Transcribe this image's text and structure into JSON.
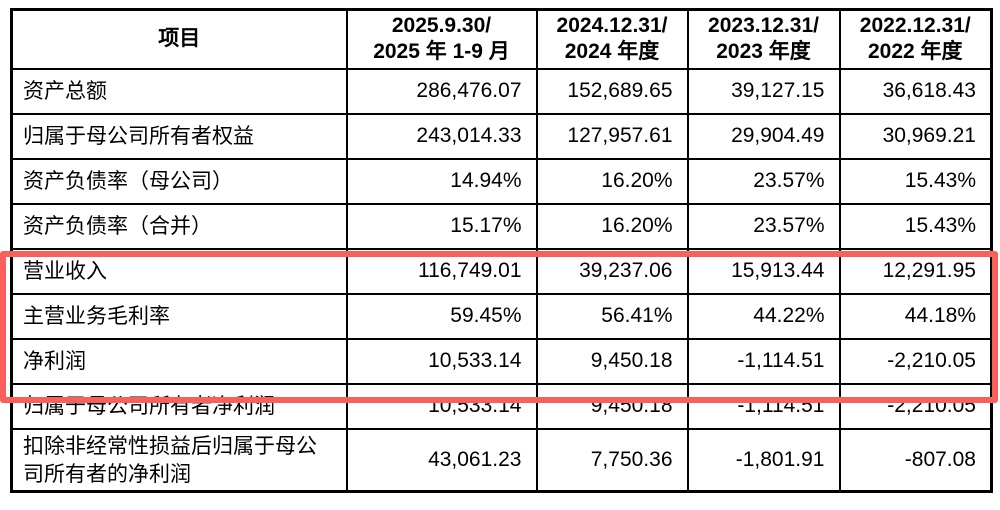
{
  "table": {
    "header": {
      "item_label": "项目",
      "periods": [
        {
          "line1": "2025.9.30/",
          "line2": "2025 年 1-9 月"
        },
        {
          "line1": "2024.12.31/",
          "line2": "2024 年度"
        },
        {
          "line1": "2023.12.31/",
          "line2": "2023 年度"
        },
        {
          "line1": "2022.12.31/",
          "line2": "2022 年度"
        }
      ]
    },
    "rows": [
      {
        "label": "资产总额",
        "values": [
          "286,476.07",
          "152,689.65",
          "39,127.15",
          "36,618.43"
        ],
        "highlighted": false,
        "tall": false
      },
      {
        "label": "归属于母公司所有者权益",
        "values": [
          "243,014.33",
          "127,957.61",
          "29,904.49",
          "30,969.21"
        ],
        "highlighted": false,
        "tall": false
      },
      {
        "label": "资产负债率（母公司）",
        "values": [
          "14.94%",
          "16.20%",
          "23.57%",
          "15.43%"
        ],
        "highlighted": false,
        "tall": false
      },
      {
        "label": "资产负债率（合并）",
        "values": [
          "15.17%",
          "16.20%",
          "23.57%",
          "15.43%"
        ],
        "highlighted": false,
        "tall": false
      },
      {
        "label": "营业收入",
        "values": [
          "116,749.01",
          "39,237.06",
          "15,913.44",
          "12,291.95"
        ],
        "highlighted": true,
        "tall": false
      },
      {
        "label": "主营业务毛利率",
        "values": [
          "59.45%",
          "56.41%",
          "44.22%",
          "44.18%"
        ],
        "highlighted": true,
        "tall": false
      },
      {
        "label": "净利润",
        "values": [
          "10,533.14",
          "9,450.18",
          "-1,114.51",
          "-2,210.05"
        ],
        "highlighted": true,
        "tall": false
      },
      {
        "label": "归属于母公司所有者净利润",
        "values": [
          "10,533.14",
          "9,450.18",
          "-1,114.51",
          "-2,210.05"
        ],
        "highlighted": false,
        "tall": false
      },
      {
        "label": "扣除非经常性损益后归属于母公司所有者的净利润",
        "values": [
          "43,061.23",
          "7,750.36",
          "-1,801.91",
          "-807.08"
        ],
        "highlighted": false,
        "tall": true
      }
    ],
    "highlight_color": "#fa5f5c",
    "text_color": "#000000",
    "background_color": "#ffffff"
  }
}
